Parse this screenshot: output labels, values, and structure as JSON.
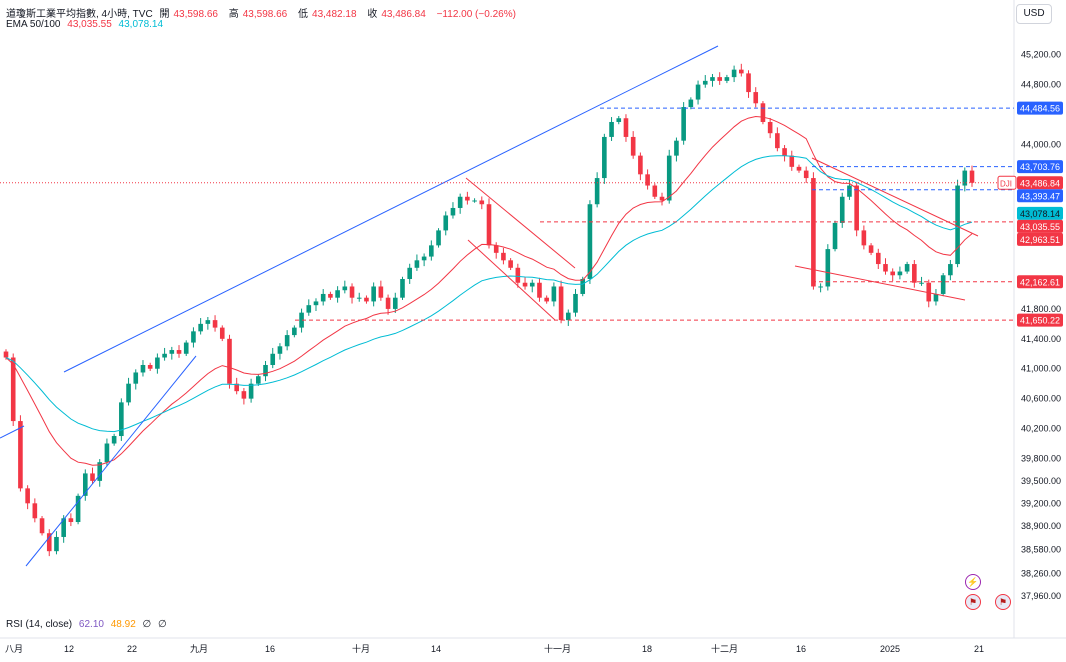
{
  "header": {
    "symbol_line": "道瓊斯工業平均指數, 4小時, TVC",
    "ohlc": [
      {
        "label": "開",
        "value": "43,598.66"
      },
      {
        "label": "高",
        "value": "43,598.66"
      },
      {
        "label": "低",
        "value": "43,482.18"
      },
      {
        "label": "收",
        "value": "43,486.84"
      }
    ],
    "change": "−112.00 (−0.26%)",
    "ema_label": "EMA 50/100",
    "ema50": "43,035.55",
    "ema100": "43,078.14"
  },
  "currency": "USD",
  "rsi": {
    "label": "RSI (14, close)",
    "v1": "62.10",
    "v2": "48.92",
    "v3": "∅",
    "v4": "∅"
  },
  "colors": {
    "up": "#089981",
    "down": "#f23645",
    "ema50": "#f23645",
    "ema100": "#00bcd4",
    "trend_blue": "#2962ff",
    "dashed_blue": "#2962ff",
    "dashed_red": "#f23645"
  },
  "chart_data": {
    "type": "candlestick",
    "ylim": [
      37800,
      45450
    ],
    "y_ticks": [
      "45,200.00",
      "44,800.00",
      "44,000.00",
      "41,800.00",
      "41,400.00",
      "41,000.00",
      "40,600.00",
      "40,200.00",
      "39,800.00",
      "39,500.00",
      "39,200.00",
      "38,900.00",
      "38,580.00",
      "38,260.00",
      "37,960.00"
    ],
    "x_ticks": [
      "八月",
      "12",
      "22",
      "九月",
      "16",
      "十月",
      "14",
      "十一月",
      "18",
      "十二月",
      "16",
      "2025",
      "21"
    ],
    "price_labels": [
      {
        "text": "44,484.56",
        "value": 44484.56,
        "kind": "blue"
      },
      {
        "text": "43,703.76",
        "value": 43703.76,
        "kind": "blue"
      },
      {
        "text": "43,486.84",
        "value": 43486.84,
        "kind": "red",
        "badge": "DJI"
      },
      {
        "text": "43,393.47",
        "value": 43393.47,
        "kind": "blue"
      },
      {
        "text": "43,078.14",
        "value": 43078.14,
        "kind": "cyan"
      },
      {
        "text": "43,035.55",
        "value": 43035.55,
        "kind": "red"
      },
      {
        "text": "42,963.51",
        "value": 42963.51,
        "kind": "red"
      },
      {
        "text": "42,162.61",
        "value": 42162.61,
        "kind": "red"
      },
      {
        "text": "41,650.22",
        "value": 41650.22,
        "kind": "red"
      }
    ],
    "closes": [
      41150,
      40300,
      39400,
      39200,
      39000,
      38800,
      38560,
      38750,
      39000,
      38950,
      39300,
      39600,
      39500,
      39750,
      40000,
      40100,
      40550,
      40800,
      40950,
      41050,
      41000,
      41150,
      41200,
      41250,
      41200,
      41350,
      41500,
      41600,
      41650,
      41550,
      41400,
      40800,
      40700,
      40600,
      40800,
      40900,
      41050,
      41200,
      41300,
      41450,
      41550,
      41750,
      41850,
      41900,
      42000,
      41950,
      42050,
      42100,
      41950,
      41950,
      41900,
      42100,
      41950,
      41800,
      41950,
      42200,
      42350,
      42450,
      42500,
      42650,
      42850,
      43050,
      43150,
      43300,
      43250,
      43250,
      43200,
      42650,
      42550,
      42450,
      42350,
      42150,
      42100,
      42150,
      41950,
      41900,
      42100,
      41650,
      41750,
      42000,
      42200,
      43200,
      43550,
      44100,
      44300,
      44350,
      44100,
      43850,
      43600,
      43450,
      43300,
      43250,
      43850,
      44050,
      44500,
      44600,
      44800,
      44850,
      44900,
      44850,
      44900,
      45000,
      44950,
      44700,
      44550,
      44300,
      44150,
      43950,
      43850,
      43700,
      43650,
      43550,
      42100,
      42100,
      42600,
      42950,
      43300,
      43450,
      42850,
      42650,
      42550,
      42400,
      42300,
      42250,
      42300,
      42400,
      42150,
      42150,
      41900,
      42000,
      42250,
      42400,
      43450,
      43650,
      43486.84
    ],
    "ema50_label": "EMA 50",
    "ema100_label": "EMA 100"
  }
}
